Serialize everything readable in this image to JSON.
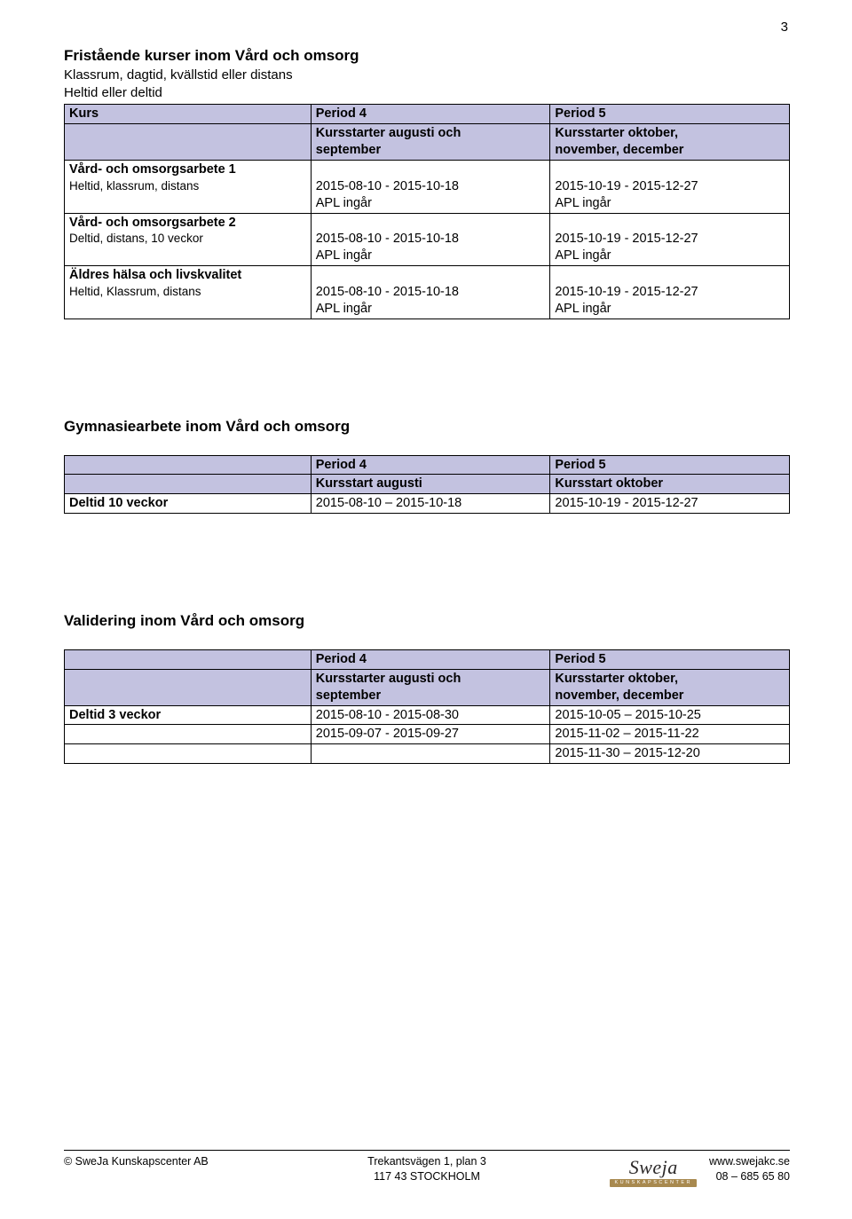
{
  "page_number": "3",
  "colors": {
    "header_bg": "#c3c2e0",
    "border": "#000000",
    "text": "#000000",
    "logo_bar": "#a8894f"
  },
  "section1": {
    "title": "Fristående kurser inom Vård och omsorg",
    "sub1": "Klassrum, dagtid, kvällstid eller distans",
    "sub2": "Heltid eller deltid",
    "header_row": {
      "c0": "Kurs",
      "c1": "Period 4",
      "c2": "Period 5"
    },
    "header_row2": {
      "c0": "",
      "c1": "Kursstarter augusti och\nseptember",
      "c2": "Kursstarter oktober,\nnovember, december"
    },
    "rows": [
      {
        "label_bold": "Vård- och omsorgsarbete 1",
        "label_light": "Heltid, klassrum, distans",
        "c1a": "2015-08-10 - 2015-10-18",
        "c1b": "APL ingår",
        "c2a": "2015-10-19 - 2015-12-27",
        "c2b": "APL ingår"
      },
      {
        "label_bold": "Vård- och omsorgsarbete 2",
        "label_light": "Deltid, distans, 10 veckor",
        "c1a": "2015-08-10 - 2015-10-18",
        "c1b": "APL ingår",
        "c2a": "2015-10-19 - 2015-12-27",
        "c2b": "APL ingår"
      },
      {
        "label_bold": "Äldres hälsa och livskvalitet",
        "label_light": "Heltid, Klassrum, distans",
        "c1a": "2015-08-10 - 2015-10-18",
        "c1b": "APL ingår",
        "c2a": "2015-10-19 - 2015-12-27",
        "c2b": "APL ingår"
      }
    ]
  },
  "section2": {
    "title": "Gymnasiearbete inom Vård och omsorg",
    "header_row": {
      "c0": "",
      "c1": "Period 4",
      "c2": "Period 5"
    },
    "header_row2": {
      "c0": "",
      "c1": "Kursstart augusti",
      "c2": "Kursstart oktober"
    },
    "row": {
      "c0": "Deltid 10 veckor",
      "c1": "2015-08-10 – 2015-10-18",
      "c2": "2015-10-19 - 2015-12-27"
    }
  },
  "section3": {
    "title": "Validering inom Vård och omsorg",
    "header_row": {
      "c0": "",
      "c1": "Period 4",
      "c2": "Period 5"
    },
    "header_row2": {
      "c0": "",
      "c1": "Kursstarter augusti och\nseptember",
      "c2": "Kursstarter oktober,\nnovember, december"
    },
    "rows": [
      {
        "c0": "Deltid 3 veckor",
        "c1": "2015-08-10 - 2015-08-30",
        "c2": "2015-10-05 – 2015-10-25"
      },
      {
        "c0": "",
        "c1": "2015-09-07 - 2015-09-27",
        "c2": "2015-11-02 – 2015-11-22"
      },
      {
        "c0": "",
        "c1": "",
        "c2": "2015-11-30 – 2015-12-20"
      }
    ]
  },
  "footer": {
    "left1": "© SweJa Kunskapscenter AB",
    "center1": "Trekantsvägen 1, plan 3",
    "center2": "117 43 STOCKHOLM",
    "right1": "www.swejakc.se",
    "right2": "08 – 685 65 80",
    "logo_main": "Sweja",
    "logo_sub": "KUNSKAPSCENTER"
  }
}
